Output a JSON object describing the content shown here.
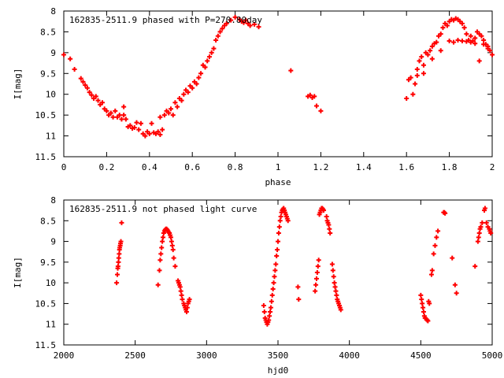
{
  "chart_data": [
    {
      "type": "scatter",
      "title": "162835-2511.9 phased with P=270.80day",
      "xlabel": "phase",
      "ylabel": "I[mag]",
      "xlim": [
        0,
        2
      ],
      "ylim": [
        8,
        11.5
      ],
      "y_inverted": true,
      "xticks": [
        0,
        0.2,
        0.4,
        0.6,
        0.8,
        1,
        1.2,
        1.4,
        1.6,
        1.8,
        2
      ],
      "xtick_labels": [
        "0",
        "0.2",
        "0.4",
        "0.6",
        "0.8",
        "1",
        "1.2",
        "1.4",
        "1.6",
        "1.8",
        "2"
      ],
      "yticks": [
        8,
        8.5,
        9,
        9.5,
        10,
        10.5,
        11,
        11.5
      ],
      "ytick_labels": [
        "8",
        "8.5",
        "9",
        "9.5",
        "10",
        "10.5",
        "11",
        "11.5"
      ],
      "marker": "plus",
      "color": "#ff0000",
      "points": [
        [
          0.0,
          9.05
        ],
        [
          0.03,
          9.15
        ],
        [
          0.05,
          9.4
        ],
        [
          0.08,
          9.62
        ],
        [
          0.09,
          9.7
        ],
        [
          0.1,
          9.78
        ],
        [
          0.11,
          9.85
        ],
        [
          0.12,
          9.95
        ],
        [
          0.13,
          10.02
        ],
        [
          0.14,
          10.1
        ],
        [
          0.15,
          10.05
        ],
        [
          0.16,
          10.15
        ],
        [
          0.17,
          10.25
        ],
        [
          0.18,
          10.2
        ],
        [
          0.19,
          10.35
        ],
        [
          0.2,
          10.4
        ],
        [
          0.21,
          10.5
        ],
        [
          0.22,
          10.45
        ],
        [
          0.23,
          10.55
        ],
        [
          0.24,
          10.4
        ],
        [
          0.25,
          10.55
        ],
        [
          0.26,
          10.5
        ],
        [
          0.27,
          10.6
        ],
        [
          0.28,
          10.5
        ],
        [
          0.28,
          10.3
        ],
        [
          0.29,
          10.6
        ],
        [
          0.3,
          10.78
        ],
        [
          0.31,
          10.75
        ],
        [
          0.32,
          10.82
        ],
        [
          0.33,
          10.8
        ],
        [
          0.34,
          10.68
        ],
        [
          0.35,
          10.85
        ],
        [
          0.36,
          10.7
        ],
        [
          0.37,
          10.95
        ],
        [
          0.38,
          11.0
        ],
        [
          0.39,
          10.9
        ],
        [
          0.4,
          10.95
        ],
        [
          0.41,
          10.7
        ],
        [
          0.42,
          10.92
        ],
        [
          0.43,
          10.95
        ],
        [
          0.44,
          10.9
        ],
        [
          0.45,
          10.97
        ],
        [
          0.46,
          10.85
        ],
        [
          0.45,
          10.55
        ],
        [
          0.47,
          10.5
        ],
        [
          0.48,
          10.4
        ],
        [
          0.49,
          10.45
        ],
        [
          0.5,
          10.35
        ],
        [
          0.51,
          10.5
        ],
        [
          0.52,
          10.2
        ],
        [
          0.53,
          10.3
        ],
        [
          0.54,
          10.1
        ],
        [
          0.55,
          10.15
        ],
        [
          0.56,
          10.0
        ],
        [
          0.57,
          9.9
        ],
        [
          0.58,
          9.95
        ],
        [
          0.59,
          9.8
        ],
        [
          0.6,
          9.85
        ],
        [
          0.61,
          9.7
        ],
        [
          0.62,
          9.75
        ],
        [
          0.63,
          9.6
        ],
        [
          0.64,
          9.5
        ],
        [
          0.65,
          9.3
        ],
        [
          0.66,
          9.35
        ],
        [
          0.67,
          9.2
        ],
        [
          0.68,
          9.1
        ],
        [
          0.69,
          9.0
        ],
        [
          0.7,
          8.9
        ],
        [
          0.71,
          8.7
        ],
        [
          0.72,
          8.6
        ],
        [
          0.73,
          8.5
        ],
        [
          0.74,
          8.42
        ],
        [
          0.75,
          8.35
        ],
        [
          0.76,
          8.3
        ],
        [
          0.78,
          8.22
        ],
        [
          0.8,
          8.15
        ],
        [
          0.82,
          8.2
        ],
        [
          0.83,
          8.25
        ],
        [
          0.84,
          8.28
        ],
        [
          0.85,
          8.22
        ],
        [
          0.86,
          8.3
        ],
        [
          0.87,
          8.35
        ],
        [
          0.89,
          8.32
        ],
        [
          0.91,
          8.38
        ],
        [
          1.06,
          9.43
        ],
        [
          1.14,
          10.05
        ],
        [
          1.15,
          10.02
        ],
        [
          1.16,
          10.08
        ],
        [
          1.17,
          10.05
        ],
        [
          1.18,
          10.28
        ],
        [
          1.2,
          10.4
        ],
        [
          1.6,
          10.1
        ],
        [
          1.61,
          9.65
        ],
        [
          1.62,
          9.6
        ],
        [
          1.63,
          10.0
        ],
        [
          1.64,
          9.75
        ],
        [
          1.65,
          9.4
        ],
        [
          1.66,
          9.2
        ],
        [
          1.67,
          9.1
        ],
        [
          1.68,
          9.5
        ],
        [
          1.69,
          9.0
        ],
        [
          1.7,
          9.05
        ],
        [
          1.71,
          8.95
        ],
        [
          1.72,
          8.85
        ],
        [
          1.73,
          8.78
        ],
        [
          1.74,
          8.75
        ],
        [
          1.75,
          8.6
        ],
        [
          1.76,
          8.55
        ],
        [
          1.77,
          8.4
        ],
        [
          1.78,
          8.3
        ],
        [
          1.79,
          8.35
        ],
        [
          1.8,
          8.25
        ],
        [
          1.81,
          8.2
        ],
        [
          1.82,
          8.22
        ],
        [
          1.83,
          8.18
        ],
        [
          1.84,
          8.2
        ],
        [
          1.85,
          8.25
        ],
        [
          1.86,
          8.3
        ],
        [
          1.87,
          8.4
        ],
        [
          1.88,
          8.55
        ],
        [
          1.89,
          8.7
        ],
        [
          1.9,
          8.6
        ],
        [
          1.91,
          8.72
        ],
        [
          1.92,
          8.65
        ],
        [
          1.93,
          8.5
        ],
        [
          1.94,
          8.55
        ],
        [
          1.95,
          8.6
        ],
        [
          1.96,
          8.7
        ],
        [
          1.97,
          8.8
        ],
        [
          1.98,
          8.9
        ],
        [
          1.99,
          8.95
        ],
        [
          2.0,
          9.05
        ],
        [
          1.65,
          9.55
        ],
        [
          1.68,
          9.3
        ],
        [
          1.72,
          9.15
        ],
        [
          1.76,
          8.95
        ],
        [
          1.8,
          8.72
        ],
        [
          1.82,
          8.75
        ],
        [
          1.84,
          8.7
        ],
        [
          1.86,
          8.72
        ],
        [
          1.88,
          8.73
        ],
        [
          1.9,
          8.75
        ],
        [
          1.92,
          8.78
        ],
        [
          1.94,
          9.2
        ],
        [
          1.96,
          8.8
        ],
        [
          1.98,
          8.85
        ]
      ]
    },
    {
      "type": "scatter",
      "title": "162835-2511.9 not phased light curve",
      "xlabel": "hjd0",
      "ylabel": "I[mag]",
      "xlim": [
        2000,
        5000
      ],
      "ylim": [
        8,
        11.5
      ],
      "y_inverted": true,
      "xticks": [
        2000,
        2500,
        3000,
        3500,
        4000,
        4500,
        5000
      ],
      "xtick_labels": [
        "2000",
        "2500",
        "3000",
        "3500",
        "4000",
        "4500",
        "5000"
      ],
      "yticks": [
        8,
        8.5,
        9,
        9.5,
        10,
        10.5,
        11,
        11.5
      ],
      "ytick_labels": [
        "8",
        "8.5",
        "9",
        "9.5",
        "10",
        "10.5",
        "11",
        "11.5"
      ],
      "marker": "plus",
      "color": "#ff0000",
      "points": [
        [
          2370,
          10.0
        ],
        [
          2375,
          9.8
        ],
        [
          2378,
          9.65
        ],
        [
          2380,
          9.6
        ],
        [
          2383,
          9.5
        ],
        [
          2385,
          9.4
        ],
        [
          2388,
          9.3
        ],
        [
          2390,
          9.2
        ],
        [
          2392,
          9.15
        ],
        [
          2395,
          9.1
        ],
        [
          2397,
          9.05
        ],
        [
          2400,
          9.0
        ],
        [
          2405,
          8.55
        ],
        [
          2660,
          10.05
        ],
        [
          2670,
          9.7
        ],
        [
          2675,
          9.45
        ],
        [
          2680,
          9.3
        ],
        [
          2685,
          9.15
        ],
        [
          2690,
          9.0
        ],
        [
          2695,
          8.9
        ],
        [
          2700,
          8.8
        ],
        [
          2705,
          8.75
        ],
        [
          2710,
          8.72
        ],
        [
          2715,
          8.7
        ],
        [
          2720,
          8.7
        ],
        [
          2725,
          8.72
        ],
        [
          2730,
          8.75
        ],
        [
          2735,
          8.78
        ],
        [
          2740,
          8.8
        ],
        [
          2745,
          8.85
        ],
        [
          2750,
          8.9
        ],
        [
          2755,
          9.0
        ],
        [
          2760,
          9.1
        ],
        [
          2765,
          9.2
        ],
        [
          2770,
          9.4
        ],
        [
          2780,
          9.6
        ],
        [
          2800,
          9.95
        ],
        [
          2805,
          10.0
        ],
        [
          2810,
          10.05
        ],
        [
          2815,
          10.1
        ],
        [
          2820,
          10.2
        ],
        [
          2825,
          10.3
        ],
        [
          2830,
          10.4
        ],
        [
          2840,
          10.5
        ],
        [
          2845,
          10.55
        ],
        [
          2850,
          10.6
        ],
        [
          2855,
          10.65
        ],
        [
          2860,
          10.7
        ],
        [
          2865,
          10.6
        ],
        [
          2870,
          10.5
        ],
        [
          2875,
          10.45
        ],
        [
          2880,
          10.4
        ],
        [
          3400,
          10.55
        ],
        [
          3405,
          10.7
        ],
        [
          3410,
          10.85
        ],
        [
          3415,
          10.9
        ],
        [
          3420,
          10.95
        ],
        [
          3425,
          11.0
        ],
        [
          3430,
          10.95
        ],
        [
          3435,
          10.9
        ],
        [
          3440,
          10.8
        ],
        [
          3445,
          10.7
        ],
        [
          3450,
          10.6
        ],
        [
          3455,
          10.45
        ],
        [
          3460,
          10.3
        ],
        [
          3465,
          10.15
        ],
        [
          3470,
          10.0
        ],
        [
          3475,
          9.85
        ],
        [
          3480,
          9.7
        ],
        [
          3485,
          9.55
        ],
        [
          3490,
          9.35
        ],
        [
          3495,
          9.2
        ],
        [
          3500,
          9.0
        ],
        [
          3505,
          8.8
        ],
        [
          3510,
          8.65
        ],
        [
          3515,
          8.5
        ],
        [
          3520,
          8.4
        ],
        [
          3525,
          8.3
        ],
        [
          3530,
          8.25
        ],
        [
          3535,
          8.22
        ],
        [
          3540,
          8.2
        ],
        [
          3545,
          8.25
        ],
        [
          3550,
          8.3
        ],
        [
          3555,
          8.35
        ],
        [
          3560,
          8.4
        ],
        [
          3565,
          8.45
        ],
        [
          3570,
          8.5
        ],
        [
          3640,
          10.1
        ],
        [
          3645,
          10.4
        ],
        [
          3760,
          10.2
        ],
        [
          3765,
          10.05
        ],
        [
          3770,
          9.9
        ],
        [
          3775,
          9.75
        ],
        [
          3780,
          9.6
        ],
        [
          3785,
          9.45
        ],
        [
          3790,
          8.35
        ],
        [
          3795,
          8.3
        ],
        [
          3800,
          8.25
        ],
        [
          3805,
          8.2
        ],
        [
          3810,
          8.2
        ],
        [
          3815,
          8.22
        ],
        [
          3820,
          8.25
        ],
        [
          3840,
          8.4
        ],
        [
          3845,
          8.5
        ],
        [
          3850,
          8.55
        ],
        [
          3855,
          8.6
        ],
        [
          3860,
          8.7
        ],
        [
          3865,
          8.8
        ],
        [
          3880,
          9.55
        ],
        [
          3885,
          9.7
        ],
        [
          3890,
          9.85
        ],
        [
          3895,
          10.0
        ],
        [
          3900,
          10.1
        ],
        [
          3905,
          10.2
        ],
        [
          3910,
          10.3
        ],
        [
          3915,
          10.4
        ],
        [
          3920,
          10.45
        ],
        [
          3925,
          10.5
        ],
        [
          3930,
          10.55
        ],
        [
          3935,
          10.6
        ],
        [
          3940,
          10.65
        ],
        [
          4500,
          10.3
        ],
        [
          4505,
          10.4
        ],
        [
          4510,
          10.5
        ],
        [
          4515,
          10.6
        ],
        [
          4520,
          10.7
        ],
        [
          4525,
          10.8
        ],
        [
          4530,
          10.85
        ],
        [
          4540,
          10.88
        ],
        [
          4545,
          10.9
        ],
        [
          4550,
          10.92
        ],
        [
          4555,
          10.45
        ],
        [
          4560,
          10.5
        ],
        [
          4575,
          9.8
        ],
        [
          4580,
          9.7
        ],
        [
          4590,
          9.3
        ],
        [
          4600,
          9.1
        ],
        [
          4610,
          8.9
        ],
        [
          4620,
          8.75
        ],
        [
          4660,
          8.3
        ],
        [
          4665,
          8.3
        ],
        [
          4670,
          8.32
        ],
        [
          4720,
          9.4
        ],
        [
          4740,
          10.05
        ],
        [
          4750,
          10.25
        ],
        [
          4880,
          9.6
        ],
        [
          4900,
          9.0
        ],
        [
          4905,
          8.9
        ],
        [
          4910,
          8.8
        ],
        [
          4915,
          8.7
        ],
        [
          4920,
          8.65
        ],
        [
          4930,
          8.55
        ],
        [
          4945,
          8.25
        ],
        [
          4950,
          8.2
        ],
        [
          4960,
          8.55
        ],
        [
          4970,
          8.65
        ],
        [
          4980,
          8.7
        ],
        [
          4985,
          8.75
        ],
        [
          4990,
          8.8
        ]
      ]
    }
  ]
}
